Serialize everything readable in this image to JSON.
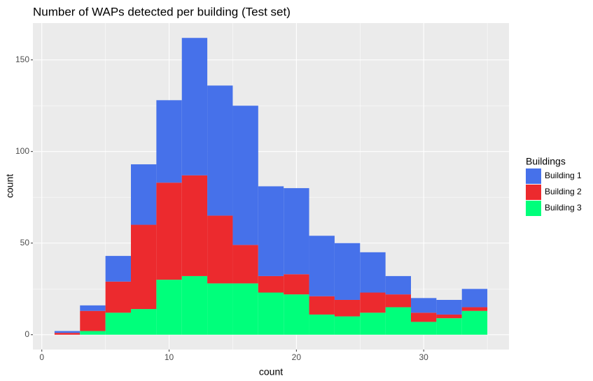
{
  "chart_data": {
    "type": "histogram",
    "title": "Number of WAPs detected per building (Test set)",
    "x_label": "count",
    "y_label": "count",
    "bins": [
      1,
      3,
      5,
      7,
      9,
      11,
      13,
      15,
      17,
      19,
      21,
      23,
      25,
      27,
      29,
      31,
      33,
      35
    ],
    "series": [
      {
        "name": "Building 1",
        "color": "#4671EA",
        "values": [
          1,
          3,
          14,
          33,
          45,
          75,
          71,
          76,
          49,
          47,
          33,
          31,
          22,
          10,
          8,
          8,
          10
        ]
      },
      {
        "name": "Building 2",
        "color": "#EC2A2E",
        "values": [
          1,
          11,
          17,
          46,
          53,
          55,
          37,
          21,
          9,
          11,
          10,
          9,
          11,
          7,
          5,
          2,
          2
        ]
      },
      {
        "name": "Building 3",
        "color": "#00FF7B",
        "values": [
          0,
          2,
          12,
          14,
          30,
          32,
          28,
          28,
          23,
          22,
          11,
          10,
          12,
          15,
          7,
          9,
          13
        ]
      }
    ],
    "legend_title": "Buildings",
    "legend": "right",
    "xlim": [
      -0.7,
      36.7
    ],
    "ylim": [
      -8.1,
      170.1
    ],
    "xticks": [
      0,
      10,
      20,
      30
    ],
    "yticks": [
      0,
      50,
      100,
      150
    ],
    "grid": true
  }
}
